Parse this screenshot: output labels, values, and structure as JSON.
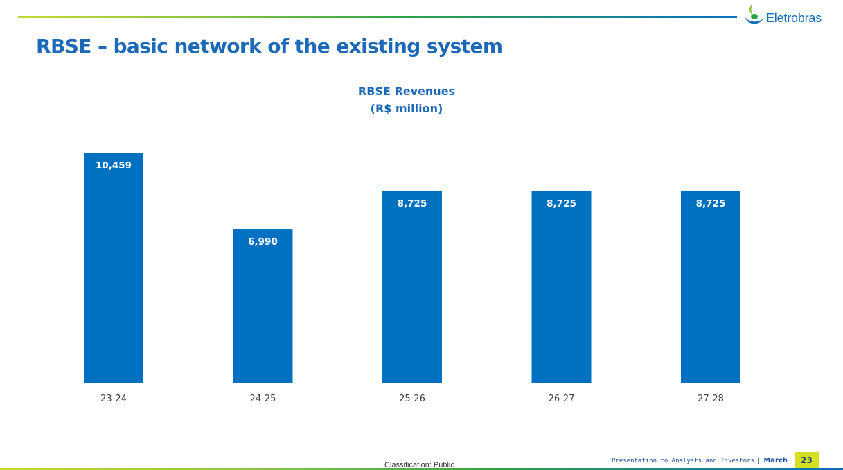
{
  "brand": {
    "name": "Eletrobras",
    "colors": {
      "blue": "#1c69b8",
      "bar": "#0070c0",
      "lime": "#d7df23",
      "green": "#2aa24a"
    }
  },
  "slide": {
    "title": "RBSE – basic network of the existing system"
  },
  "chart_data": {
    "type": "bar",
    "title": "RBSE Revenues",
    "subtitle": "(R$ million)",
    "categories": [
      "23-24",
      "24-25",
      "25-26",
      "26-27",
      "27-28"
    ],
    "values": [
      10459,
      6990,
      8725,
      8725,
      8725
    ],
    "value_labels": [
      "10,459",
      "6,990",
      "8,725",
      "8,725",
      "8,725"
    ],
    "color": "#0070c0",
    "grid": false,
    "legend": "none",
    "ylim": [
      0,
      10459
    ]
  },
  "footer": {
    "classification": "Classification: Public",
    "presentation": "Presentation to Analysts and Investors",
    "separator": "|",
    "month": "March",
    "page_number": "23"
  }
}
